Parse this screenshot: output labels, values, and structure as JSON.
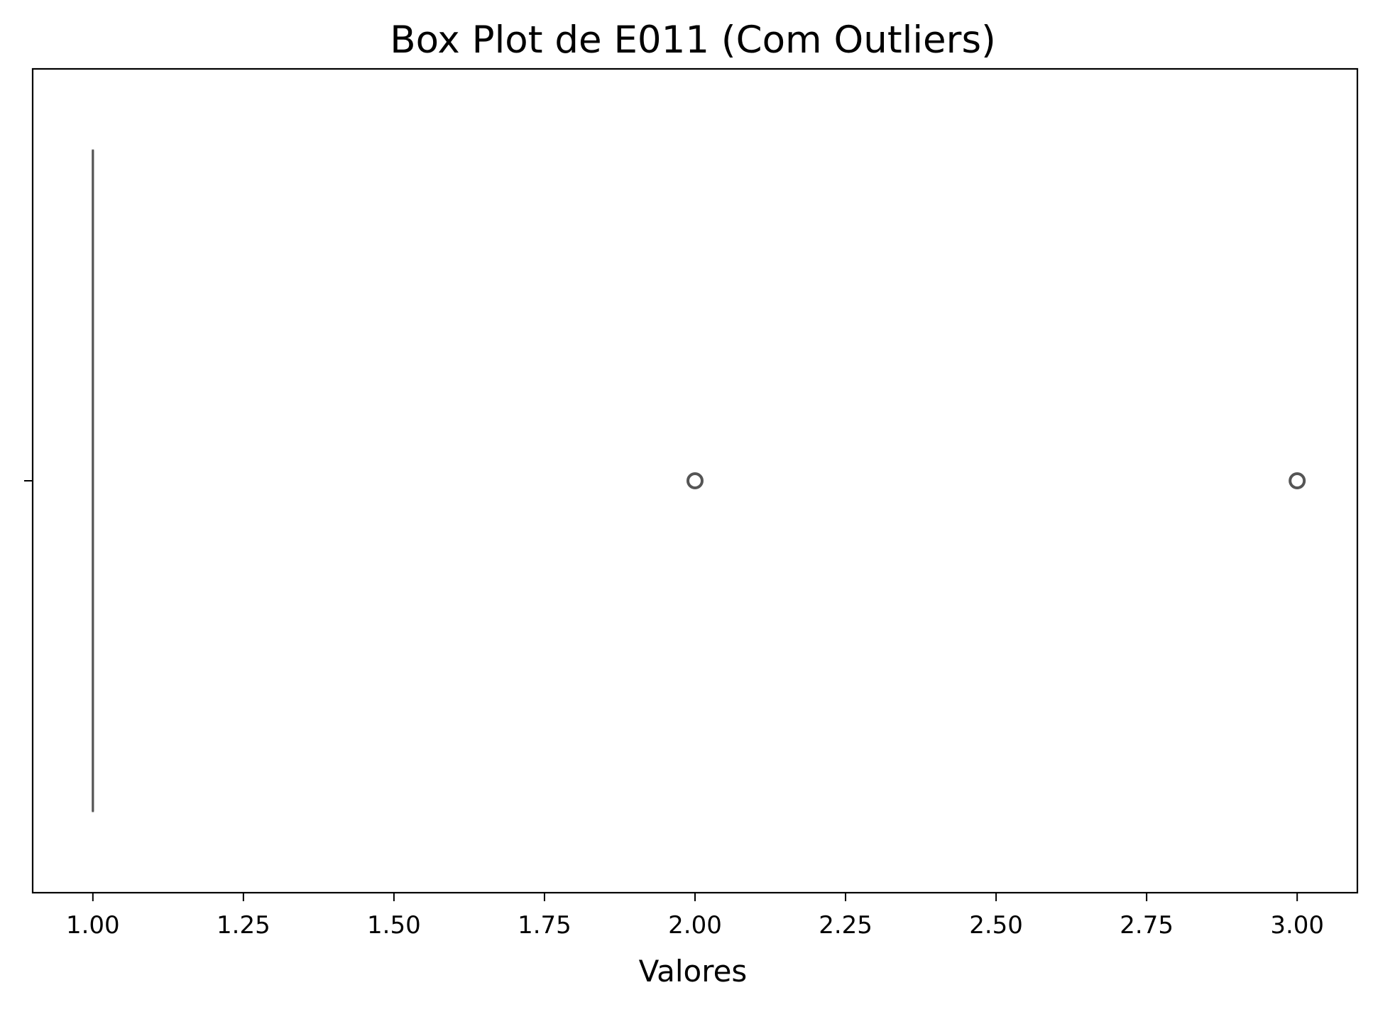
{
  "chart_data": {
    "type": "box",
    "title": "Box Plot de E011 (Com Outliers)",
    "xlabel": "Valores",
    "ylabel": "",
    "orientation": "horizontal",
    "xlim": [
      0.9,
      3.1
    ],
    "xticks": [
      1.0,
      1.25,
      1.5,
      1.75,
      2.0,
      2.25,
      2.5,
      2.75,
      3.0
    ],
    "xtick_labels": [
      "1.00",
      "1.25",
      "1.50",
      "1.75",
      "2.00",
      "2.25",
      "2.50",
      "2.75",
      "3.00"
    ],
    "grid": false,
    "box": {
      "min": 1.0,
      "q1": 1.0,
      "median": 1.0,
      "q3": 1.0,
      "max": 1.0,
      "outliers": [
        2.0,
        3.0
      ]
    },
    "colors": {
      "box_line": "#555555",
      "outlier": "#555555",
      "axes": "#000000"
    }
  }
}
